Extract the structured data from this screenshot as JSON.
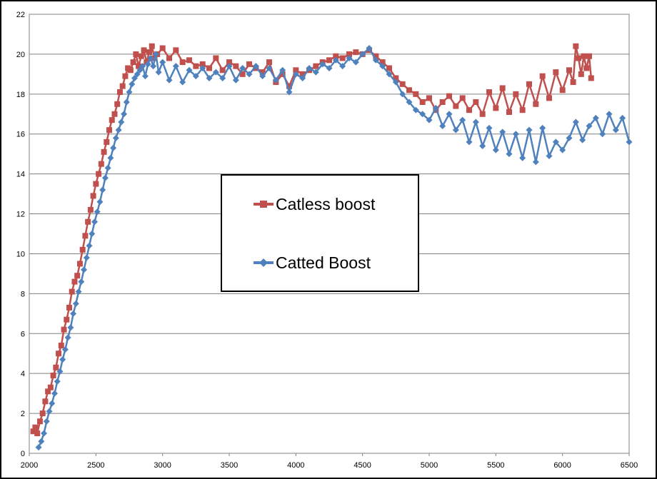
{
  "chart_data": {
    "type": "line",
    "title": "",
    "xlabel": "",
    "ylabel": "",
    "xlim": [
      2000,
      6500
    ],
    "ylim": [
      0,
      22
    ],
    "x_ticks": [
      "2000",
      "2500",
      "3000",
      "3500",
      "4000",
      "4500",
      "5000",
      "5500",
      "6000",
      "6500"
    ],
    "y_ticks": [
      "0",
      "2",
      "4",
      "6",
      "8",
      "10",
      "12",
      "14",
      "16",
      "18",
      "20",
      "22"
    ],
    "grid": "horizontal",
    "legend_position": "center",
    "series": [
      {
        "name": "Catless boost",
        "color": "#C0504D",
        "marker": "square",
        "points": [
          [
            2030,
            1.1
          ],
          [
            2045,
            1.3
          ],
          [
            2060,
            1.0
          ],
          [
            2080,
            1.6
          ],
          [
            2100,
            2.0
          ],
          [
            2120,
            2.6
          ],
          [
            2140,
            3.1
          ],
          [
            2160,
            3.3
          ],
          [
            2180,
            3.9
          ],
          [
            2200,
            4.3
          ],
          [
            2220,
            5.0
          ],
          [
            2240,
            5.4
          ],
          [
            2260,
            6.2
          ],
          [
            2280,
            6.7
          ],
          [
            2300,
            7.3
          ],
          [
            2320,
            8.1
          ],
          [
            2340,
            8.6
          ],
          [
            2360,
            8.9
          ],
          [
            2380,
            9.5
          ],
          [
            2400,
            10.2
          ],
          [
            2420,
            10.9
          ],
          [
            2440,
            11.6
          ],
          [
            2460,
            12.2
          ],
          [
            2480,
            12.9
          ],
          [
            2500,
            13.5
          ],
          [
            2520,
            14.0
          ],
          [
            2540,
            14.5
          ],
          [
            2560,
            15.1
          ],
          [
            2580,
            15.6
          ],
          [
            2600,
            16.2
          ],
          [
            2620,
            16.7
          ],
          [
            2640,
            17.0
          ],
          [
            2660,
            17.5
          ],
          [
            2680,
            18.1
          ],
          [
            2700,
            18.4
          ],
          [
            2720,
            18.9
          ],
          [
            2740,
            19.3
          ],
          [
            2760,
            19.2
          ],
          [
            2780,
            19.6
          ],
          [
            2800,
            20.0
          ],
          [
            2820,
            19.4
          ],
          [
            2840,
            19.9
          ],
          [
            2860,
            20.2
          ],
          [
            2880,
            19.6
          ],
          [
            2900,
            20.1
          ],
          [
            2920,
            20.4
          ],
          [
            2940,
            19.8
          ],
          [
            2960,
            20.0
          ],
          [
            3000,
            20.3
          ],
          [
            3050,
            19.8
          ],
          [
            3100,
            20.2
          ],
          [
            3150,
            19.6
          ],
          [
            3200,
            19.7
          ],
          [
            3250,
            19.4
          ],
          [
            3300,
            19.5
          ],
          [
            3350,
            19.3
          ],
          [
            3400,
            19.8
          ],
          [
            3450,
            19.2
          ],
          [
            3500,
            19.6
          ],
          [
            3550,
            19.4
          ],
          [
            3600,
            19.0
          ],
          [
            3650,
            19.5
          ],
          [
            3700,
            19.3
          ],
          [
            3750,
            19.1
          ],
          [
            3800,
            19.6
          ],
          [
            3850,
            18.6
          ],
          [
            3900,
            19.0
          ],
          [
            3950,
            18.4
          ],
          [
            4000,
            19.2
          ],
          [
            4050,
            19.0
          ],
          [
            4100,
            19.2
          ],
          [
            4150,
            19.4
          ],
          [
            4200,
            19.6
          ],
          [
            4250,
            19.7
          ],
          [
            4300,
            19.9
          ],
          [
            4350,
            19.8
          ],
          [
            4400,
            20.0
          ],
          [
            4450,
            20.1
          ],
          [
            4500,
            20.0
          ],
          [
            4550,
            20.2
          ],
          [
            4600,
            19.9
          ],
          [
            4650,
            19.6
          ],
          [
            4700,
            19.3
          ],
          [
            4750,
            18.8
          ],
          [
            4800,
            18.5
          ],
          [
            4850,
            18.2
          ],
          [
            4900,
            18.0
          ],
          [
            4950,
            17.6
          ],
          [
            5000,
            17.8
          ],
          [
            5050,
            17.2
          ],
          [
            5100,
            17.6
          ],
          [
            5150,
            17.9
          ],
          [
            5200,
            17.4
          ],
          [
            5250,
            17.8
          ],
          [
            5300,
            17.2
          ],
          [
            5350,
            17.6
          ],
          [
            5400,
            17.0
          ],
          [
            5450,
            18.1
          ],
          [
            5500,
            17.3
          ],
          [
            5550,
            18.3
          ],
          [
            5600,
            17.1
          ],
          [
            5650,
            18.0
          ],
          [
            5700,
            17.2
          ],
          [
            5750,
            18.5
          ],
          [
            5800,
            17.5
          ],
          [
            5850,
            18.9
          ],
          [
            5900,
            17.8
          ],
          [
            5950,
            19.1
          ],
          [
            6000,
            18.2
          ],
          [
            6050,
            19.2
          ],
          [
            6080,
            18.6
          ],
          [
            6100,
            20.4
          ],
          [
            6120,
            19.8
          ],
          [
            6140,
            19.0
          ],
          [
            6160,
            19.9
          ],
          [
            6180,
            19.3
          ],
          [
            6200,
            19.9
          ],
          [
            6215,
            18.8
          ]
        ]
      },
      {
        "name": "Catted Boost",
        "color": "#4F81BD",
        "marker": "diamond",
        "points": [
          [
            2070,
            0.3
          ],
          [
            2090,
            0.6
          ],
          [
            2110,
            1.0
          ],
          [
            2130,
            1.6
          ],
          [
            2150,
            2.1
          ],
          [
            2170,
            2.5
          ],
          [
            2190,
            3.0
          ],
          [
            2210,
            3.6
          ],
          [
            2230,
            4.1
          ],
          [
            2250,
            4.7
          ],
          [
            2270,
            5.2
          ],
          [
            2290,
            5.8
          ],
          [
            2310,
            6.3
          ],
          [
            2330,
            7.0
          ],
          [
            2350,
            7.5
          ],
          [
            2370,
            8.1
          ],
          [
            2390,
            8.6
          ],
          [
            2410,
            9.2
          ],
          [
            2430,
            9.8
          ],
          [
            2450,
            10.4
          ],
          [
            2470,
            11.0
          ],
          [
            2490,
            11.6
          ],
          [
            2510,
            12.1
          ],
          [
            2530,
            12.6
          ],
          [
            2550,
            13.2
          ],
          [
            2570,
            13.8
          ],
          [
            2590,
            14.3
          ],
          [
            2610,
            14.8
          ],
          [
            2630,
            15.3
          ],
          [
            2650,
            15.8
          ],
          [
            2670,
            16.2
          ],
          [
            2690,
            16.6
          ],
          [
            2710,
            17.0
          ],
          [
            2730,
            17.6
          ],
          [
            2750,
            18.1
          ],
          [
            2770,
            18.5
          ],
          [
            2790,
            18.8
          ],
          [
            2810,
            19.0
          ],
          [
            2830,
            19.2
          ],
          [
            2850,
            19.4
          ],
          [
            2870,
            18.9
          ],
          [
            2890,
            19.5
          ],
          [
            2910,
            19.8
          ],
          [
            2930,
            19.4
          ],
          [
            2950,
            20.0
          ],
          [
            2970,
            19.1
          ],
          [
            3000,
            19.6
          ],
          [
            3050,
            18.7
          ],
          [
            3100,
            19.4
          ],
          [
            3150,
            18.6
          ],
          [
            3200,
            19.2
          ],
          [
            3250,
            18.9
          ],
          [
            3300,
            19.3
          ],
          [
            3350,
            18.8
          ],
          [
            3400,
            19.1
          ],
          [
            3450,
            18.8
          ],
          [
            3500,
            19.4
          ],
          [
            3550,
            18.7
          ],
          [
            3600,
            19.3
          ],
          [
            3650,
            19.0
          ],
          [
            3700,
            19.4
          ],
          [
            3750,
            18.9
          ],
          [
            3800,
            19.3
          ],
          [
            3850,
            18.7
          ],
          [
            3900,
            19.2
          ],
          [
            3950,
            18.1
          ],
          [
            4000,
            19.0
          ],
          [
            4050,
            18.8
          ],
          [
            4100,
            19.3
          ],
          [
            4150,
            19.1
          ],
          [
            4200,
            19.5
          ],
          [
            4250,
            19.3
          ],
          [
            4300,
            19.7
          ],
          [
            4350,
            19.4
          ],
          [
            4400,
            19.8
          ],
          [
            4450,
            19.6
          ],
          [
            4500,
            20.0
          ],
          [
            4550,
            20.3
          ],
          [
            4600,
            19.7
          ],
          [
            4650,
            19.4
          ],
          [
            4700,
            19.0
          ],
          [
            4750,
            18.6
          ],
          [
            4800,
            18.0
          ],
          [
            4850,
            17.6
          ],
          [
            4900,
            17.2
          ],
          [
            4950,
            17.0
          ],
          [
            5000,
            16.7
          ],
          [
            5050,
            17.3
          ],
          [
            5100,
            16.4
          ],
          [
            5150,
            17.0
          ],
          [
            5200,
            16.2
          ],
          [
            5250,
            16.7
          ],
          [
            5300,
            15.6
          ],
          [
            5350,
            16.6
          ],
          [
            5400,
            15.4
          ],
          [
            5450,
            16.3
          ],
          [
            5500,
            15.2
          ],
          [
            5550,
            16.1
          ],
          [
            5600,
            15.0
          ],
          [
            5650,
            16.0
          ],
          [
            5700,
            14.8
          ],
          [
            5750,
            16.2
          ],
          [
            5800,
            14.6
          ],
          [
            5850,
            16.3
          ],
          [
            5900,
            14.9
          ],
          [
            5950,
            15.6
          ],
          [
            6000,
            15.2
          ],
          [
            6050,
            15.8
          ],
          [
            6100,
            16.6
          ],
          [
            6150,
            15.7
          ],
          [
            6200,
            16.4
          ],
          [
            6250,
            16.8
          ],
          [
            6300,
            16.0
          ],
          [
            6350,
            17.0
          ],
          [
            6400,
            16.2
          ],
          [
            6450,
            16.8
          ],
          [
            6500,
            15.6
          ]
        ]
      }
    ]
  }
}
